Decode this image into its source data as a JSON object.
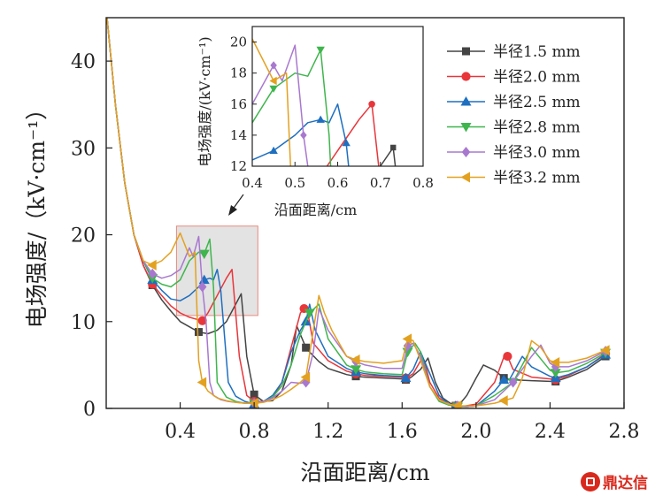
{
  "chart_data": {
    "type": "line",
    "xlabel": "沿面距离/cm",
    "ylabel": "电场强度/（kV·cm⁻¹）",
    "xlim": [
      0,
      2.8
    ],
    "ylim": [
      0,
      45
    ],
    "xticks": [
      0.4,
      0.8,
      1.2,
      1.6,
      2.0,
      2.4,
      2.8
    ],
    "yticks": [
      0,
      10,
      20,
      30,
      40
    ],
    "xtick_labels": [
      "0.4",
      "0.8",
      "1.2",
      "1.6",
      "2.0",
      "2.4",
      "2.8"
    ],
    "ytick_labels": [
      "0",
      "10",
      "20",
      "30",
      "40"
    ],
    "legend_position": "top-right",
    "highlight_region": {
      "x": [
        0.38,
        0.82
      ],
      "y": [
        10.7,
        21.0
      ]
    },
    "series": [
      {
        "name": "半径1.5 mm",
        "color": "#444444",
        "marker": "square",
        "x": [
          0.0,
          0.05,
          0.1,
          0.15,
          0.2,
          0.25,
          0.3,
          0.35,
          0.4,
          0.45,
          0.5,
          0.55,
          0.6,
          0.65,
          0.7,
          0.73,
          0.76,
          0.8,
          0.85,
          0.9,
          0.95,
          1.0,
          1.03,
          1.06,
          1.08,
          1.1,
          1.15,
          1.2,
          1.3,
          1.35,
          1.4,
          1.5,
          1.6,
          1.62,
          1.65,
          1.7,
          1.74,
          1.78,
          1.82,
          1.86,
          1.89,
          1.9,
          1.95,
          2.0,
          2.04,
          2.1,
          2.15,
          2.2,
          2.3,
          2.43,
          2.5,
          2.6,
          2.7
        ],
        "y": [
          46,
          35,
          26,
          20,
          16.5,
          14.2,
          12.5,
          11.2,
          10,
          9.4,
          8.8,
          8.6,
          9,
          10,
          12,
          13.2,
          6,
          1.6,
          0.8,
          0.9,
          2,
          5,
          9.5,
          8,
          7,
          6.5,
          5.4,
          4.6,
          3.9,
          3.7,
          3.6,
          3.5,
          3.4,
          3.3,
          3.6,
          4.5,
          5.8,
          3,
          1.2,
          0.6,
          0.3,
          0.2,
          1.5,
          3.5,
          5,
          4.4,
          3.5,
          3.3,
          3.2,
          3.1,
          3.6,
          4.5,
          6
        ]
      },
      {
        "name": "半径2.0 mm",
        "color": "#e8363b",
        "marker": "circle",
        "x": [
          0.0,
          0.05,
          0.1,
          0.15,
          0.2,
          0.25,
          0.3,
          0.35,
          0.4,
          0.45,
          0.5,
          0.52,
          0.55,
          0.6,
          0.65,
          0.68,
          0.72,
          0.76,
          0.8,
          0.85,
          0.9,
          0.95,
          1.0,
          1.05,
          1.07,
          1.09,
          1.12,
          1.2,
          1.3,
          1.35,
          1.4,
          1.5,
          1.6,
          1.62,
          1.66,
          1.7,
          1.72,
          1.75,
          1.8,
          1.85,
          1.89,
          1.92,
          2.0,
          2.1,
          2.15,
          2.17,
          2.2,
          2.3,
          2.4,
          2.43,
          2.5,
          2.6,
          2.7
        ],
        "y": [
          46,
          35,
          26,
          20,
          16.5,
          14.3,
          13,
          11.8,
          11,
          10.5,
          10.2,
          10.1,
          11,
          13,
          15,
          16,
          6,
          1.5,
          0.8,
          0.8,
          1.2,
          3,
          7,
          11,
          11.5,
          11,
          7.5,
          5.5,
          4.3,
          4,
          3.8,
          3.7,
          3.6,
          3.5,
          4,
          5.5,
          5.5,
          3,
          1.2,
          0.5,
          0.3,
          0.2,
          0.5,
          3,
          5.9,
          6,
          4.5,
          3.6,
          3.4,
          3.3,
          3.8,
          4.8,
          6.3
        ]
      },
      {
        "name": "半径2.5 mm",
        "color": "#1e6fc0",
        "marker": "triangle-up",
        "x": [
          0.0,
          0.05,
          0.1,
          0.15,
          0.2,
          0.25,
          0.3,
          0.35,
          0.4,
          0.45,
          0.5,
          0.53,
          0.56,
          0.58,
          0.6,
          0.62,
          0.66,
          0.7,
          0.75,
          0.8,
          0.85,
          0.9,
          0.95,
          1.0,
          1.05,
          1.08,
          1.1,
          1.13,
          1.2,
          1.3,
          1.35,
          1.4,
          1.5,
          1.6,
          1.62,
          1.66,
          1.7,
          1.75,
          1.8,
          1.85,
          1.89,
          1.95,
          2.0,
          2.1,
          2.15,
          2.18,
          2.25,
          2.3,
          2.4,
          2.43,
          2.5,
          2.6,
          2.7
        ],
        "y": [
          46,
          35,
          26,
          20,
          17,
          14.8,
          13.6,
          12.6,
          12.4,
          13,
          14,
          14.8,
          15,
          14.8,
          16,
          13.5,
          3,
          1.4,
          0.8,
          0.5,
          0.8,
          1.5,
          3,
          6.5,
          9,
          10,
          12,
          9,
          6,
          4.6,
          4.2,
          4,
          3.8,
          3.7,
          3.5,
          4.5,
          6.5,
          4,
          1.5,
          0.5,
          0.3,
          0.2,
          0.3,
          2,
          3.3,
          3.3,
          6,
          4.8,
          3.7,
          3.5,
          3.9,
          4.8,
          6.2
        ]
      },
      {
        "name": "半径2.8 mm",
        "color": "#3fb54d",
        "marker": "triangle-down",
        "x": [
          0.0,
          0.05,
          0.1,
          0.15,
          0.2,
          0.25,
          0.3,
          0.35,
          0.4,
          0.45,
          0.5,
          0.53,
          0.56,
          0.58,
          0.6,
          0.65,
          0.7,
          0.75,
          0.8,
          0.85,
          0.9,
          0.95,
          1.0,
          1.05,
          1.1,
          1.15,
          1.2,
          1.3,
          1.35,
          1.4,
          1.5,
          1.6,
          1.63,
          1.67,
          1.7,
          1.75,
          1.8,
          1.85,
          1.9,
          1.95,
          2.0,
          2.1,
          2.2,
          2.25,
          2.3,
          2.4,
          2.43,
          2.5,
          2.6,
          2.7
        ],
        "y": [
          46,
          35,
          26,
          20,
          17,
          15,
          14.3,
          14,
          14.8,
          17,
          18,
          17.8,
          19.5,
          14,
          3,
          1.3,
          0.8,
          0.6,
          0.6,
          0.8,
          1.3,
          2.6,
          5,
          8.5,
          11,
          12,
          8,
          5,
          4.5,
          4.2,
          4,
          3.9,
          6.5,
          7.5,
          6.5,
          2.5,
          0.8,
          0.4,
          0.2,
          0.2,
          0.3,
          1.5,
          3,
          5,
          7,
          4.4,
          4.1,
          4.3,
          5.2,
          6.4
        ]
      },
      {
        "name": "半径3.0 mm",
        "color": "#a878cf",
        "marker": "diamond",
        "x": [
          0.0,
          0.05,
          0.1,
          0.15,
          0.2,
          0.25,
          0.3,
          0.35,
          0.4,
          0.45,
          0.47,
          0.5,
          0.52,
          0.54,
          0.56,
          0.58,
          0.62,
          0.66,
          0.7,
          0.75,
          0.8,
          0.85,
          0.9,
          0.95,
          1.0,
          1.05,
          1.08,
          1.12,
          1.15,
          1.2,
          1.3,
          1.35,
          1.4,
          1.5,
          1.6,
          1.63,
          1.66,
          1.7,
          1.75,
          1.8,
          1.85,
          1.9,
          1.95,
          2.0,
          2.1,
          2.2,
          2.3,
          2.35,
          2.4,
          2.43,
          2.5,
          2.6,
          2.7
        ],
        "y": [
          46,
          35,
          26,
          20,
          17,
          15.5,
          15,
          15.3,
          16,
          18.5,
          17.5,
          19.8,
          14,
          10,
          3,
          1.5,
          1,
          0.8,
          0.7,
          0.6,
          0.6,
          0.8,
          1.2,
          2,
          3,
          2.9,
          3,
          6.5,
          11.5,
          9,
          6,
          5.4,
          5,
          4.6,
          4.6,
          7.2,
          7.5,
          6,
          2.5,
          1,
          0.5,
          0.3,
          0.2,
          0.3,
          1,
          3,
          6,
          7.3,
          5.2,
          4.8,
          4.8,
          5.5,
          6.6
        ]
      },
      {
        "name": "半径3.2 mm",
        "color": "#e3a120",
        "marker": "triangle-left",
        "x": [
          0.0,
          0.05,
          0.1,
          0.15,
          0.2,
          0.25,
          0.3,
          0.35,
          0.4,
          0.45,
          0.48,
          0.5,
          0.52,
          0.55,
          0.6,
          0.65,
          0.7,
          0.75,
          0.8,
          0.85,
          0.9,
          0.95,
          1.0,
          1.05,
          1.08,
          1.12,
          1.15,
          1.18,
          1.22,
          1.3,
          1.35,
          1.4,
          1.5,
          1.6,
          1.63,
          1.66,
          1.7,
          1.75,
          1.8,
          1.85,
          1.9,
          2.0,
          2.1,
          2.15,
          2.2,
          2.25,
          2.3,
          2.35,
          2.4,
          2.43,
          2.5,
          2.6,
          2.7
        ],
        "y": [
          46,
          35,
          26,
          20,
          17,
          16.5,
          17,
          18,
          20.2,
          17.5,
          18,
          5.5,
          3,
          2,
          1.2,
          0.9,
          0.7,
          0.6,
          0.6,
          0.7,
          1,
          1.5,
          2.2,
          3,
          3.6,
          9,
          13,
          11,
          9,
          6,
          5.6,
          5.4,
          5.2,
          5.5,
          8,
          7.8,
          5.5,
          2.5,
          1,
          0.5,
          0.3,
          0.3,
          0.6,
          0.9,
          1.2,
          3.5,
          7.8,
          7,
          5.5,
          5.3,
          5.3,
          5.8,
          6.7
        ]
      }
    ],
    "inset": {
      "xlabel": "沿面距离/cm",
      "ylabel": "电场强度/(kV·cm⁻¹)",
      "xlim": [
        0.4,
        0.8
      ],
      "ylim": [
        12,
        21
      ],
      "xticks": [
        0.4,
        0.5,
        0.6,
        0.7,
        0.8
      ],
      "yticks": [
        12,
        14,
        16,
        18,
        20
      ],
      "xtick_labels": [
        "0.4",
        "0.5",
        "0.6",
        "0.7",
        "0.8"
      ],
      "ytick_labels": [
        "12",
        "14",
        "16",
        "18",
        "20"
      ]
    }
  },
  "watermark": {
    "text": "鼎达信",
    "color": "#d9291c"
  }
}
